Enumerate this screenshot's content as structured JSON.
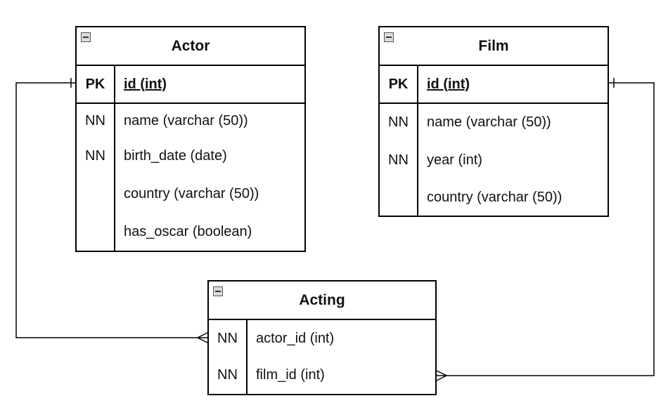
{
  "tables": {
    "actor": {
      "title": "Actor",
      "pk": {
        "key": "PK",
        "field": "id (int)"
      },
      "rows": [
        {
          "key": "NN",
          "field": "name (varchar (50))"
        },
        {
          "key": "NN",
          "field": "birth_date (date)"
        },
        {
          "key": "",
          "field": "country (varchar (50))"
        },
        {
          "key": "",
          "field": "has_oscar (boolean)"
        }
      ]
    },
    "film": {
      "title": "Film",
      "pk": {
        "key": "PK",
        "field": "id (int)"
      },
      "rows": [
        {
          "key": "NN",
          "field": "name (varchar (50))"
        },
        {
          "key": "NN",
          "field": "year (int)"
        },
        {
          "key": "",
          "field": "country (varchar (50))"
        }
      ]
    },
    "acting": {
      "title": "Acting",
      "rows": [
        {
          "key": "NN",
          "field": "actor_id (int)"
        },
        {
          "key": "NN",
          "field": "film_id (int)"
        }
      ]
    }
  },
  "relationships": [
    {
      "from": "Actor.id",
      "to": "Acting.actor_id",
      "from_end": "one",
      "to_end": "many"
    },
    {
      "from": "Film.id",
      "to": "Acting.film_id",
      "from_end": "one",
      "to_end": "many"
    }
  ]
}
